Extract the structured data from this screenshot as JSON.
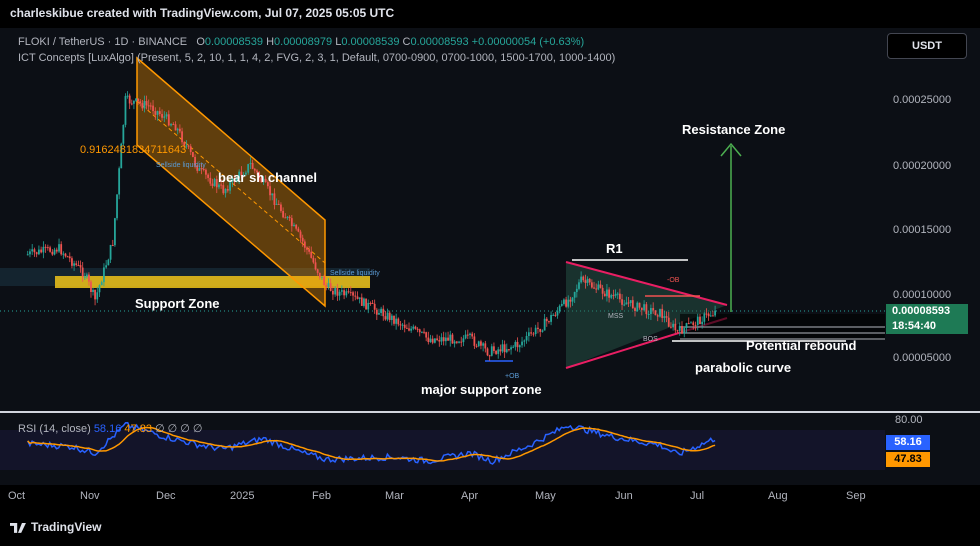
{
  "credit": "charleskibue created with TradingView.com, Jul 07, 2025 05:05 UTC",
  "legend": {
    "symbol": "FLOKI / TetherUS · 1D · BINANCE",
    "o_label": "O",
    "o": "0.00008539",
    "h_label": "H",
    "h": "0.00008979",
    "l_label": "L",
    "l": "0.00008539",
    "c_label": "C",
    "c": "0.00008593",
    "change": "+0.00000054 (+0.63%)",
    "indicator": "ICT Concepts [LuxAlgo] (Present, 5, 2, 10, 1, 1, 4, 2, FVG, 2, 3, 1, Default, 0700-0900, 0700-1000, 1500-1700, 1000-1400)"
  },
  "currency_button": "USDT",
  "price_box": {
    "price": "0.00008593",
    "countdown": "18:54:40"
  },
  "annotations": {
    "bearish_channel": "bear sh channel",
    "support_zone": "Support Zone",
    "resistance_zone": "Resistance Zone",
    "r1": "R1",
    "potential_rebound": "Potential rebound",
    "parabolic_curve": "parabolic curve",
    "major_support_zone": "major support zone",
    "fib_value": "0.9162481834711643",
    "sellside_liquidity_1": "Sellside liquidity",
    "sellside_liquidity_2": "Sellside liquidity",
    "plus_ob": "+OB",
    "minus_ob": "-OB",
    "mss": "MSS",
    "bos": "BOS"
  },
  "rsi": {
    "label": "RSI (14, close)",
    "value": "58.16",
    "ma_value": "47.83",
    "extra": "∅ ∅ ∅ ∅",
    "level_80": "80.00",
    "rsi_color": "#2962ff",
    "ma_color": "#ff9800"
  },
  "brand": "TradingView",
  "colors": {
    "up": "#26a69a",
    "down": "#ef5350",
    "channel": "#ff9800",
    "support": "#f0c419",
    "triangle": "#e91e63",
    "arrow": "#4caf50"
  },
  "chart_data": {
    "type": "candlestick",
    "y_ticks": [
      "0.00025000",
      "0.00020000",
      "0.00015000",
      "0.00010000",
      "0.00005000"
    ],
    "x_ticks": [
      "Oct",
      "Nov",
      "Dec",
      "2025",
      "Feb",
      "Mar",
      "Apr",
      "May",
      "Jun",
      "Jul",
      "Aug",
      "Sep"
    ],
    "ylim": [
      3.5e-05,
      0.00029
    ],
    "last_price": 8.593e-05,
    "close_path": [
      {
        "x": "Oct 7",
        "y": 0.00013
      },
      {
        "x": "Oct 20",
        "y": 0.000135
      },
      {
        "x": "Oct 30",
        "y": 0.000115
      },
      {
        "x": "Nov 3",
        "y": 9.5e-05
      },
      {
        "x": "Nov 10",
        "y": 0.00014
      },
      {
        "x": "Nov 15",
        "y": 0.00025
      },
      {
        "x": "Nov 25",
        "y": 0.000245
      },
      {
        "x": "Dec 5",
        "y": 0.00023
      },
      {
        "x": "Dec 15",
        "y": 0.000195
      },
      {
        "x": "Dec 25",
        "y": 0.00018
      },
      {
        "x": "Jan 5",
        "y": 0.0002
      },
      {
        "x": "Jan 15",
        "y": 0.00017
      },
      {
        "x": "Jan 25",
        "y": 0.00014
      },
      {
        "x": "Feb 3",
        "y": 0.000105
      },
      {
        "x": "Feb 15",
        "y": 9.5e-05
      },
      {
        "x": "Mar 1",
        "y": 8e-05
      },
      {
        "x": "Mar 15",
        "y": 6.5e-05
      },
      {
        "x": "Apr 1",
        "y": 6.5e-05
      },
      {
        "x": "Apr 8",
        "y": 5.5e-05
      },
      {
        "x": "Apr 20",
        "y": 6e-05
      },
      {
        "x": "Apr 30",
        "y": 7.5e-05
      },
      {
        "x": "May 10",
        "y": 9.5e-05
      },
      {
        "x": "May 15",
        "y": 0.00011
      },
      {
        "x": "May 25",
        "y": 0.0001
      },
      {
        "x": "Jun 5",
        "y": 9e-05
      },
      {
        "x": "Jun 15",
        "y": 8.5e-05
      },
      {
        "x": "Jun 22",
        "y": 7e-05
      },
      {
        "x": "Jul 1",
        "y": 8e-05
      },
      {
        "x": "Jul 7",
        "y": 8.593e-05
      }
    ],
    "rsi_path": [
      {
        "x": "Oct 7",
        "y": 52
      },
      {
        "x": "Oct 25",
        "y": 48
      },
      {
        "x": "Nov 3",
        "y": 40
      },
      {
        "x": "Nov 15",
        "y": 75
      },
      {
        "x": "Dec 1",
        "y": 60
      },
      {
        "x": "Dec 15",
        "y": 50
      },
      {
        "x": "Dec 25",
        "y": 45
      },
      {
        "x": "Jan 10",
        "y": 58
      },
      {
        "x": "Jan 25",
        "y": 40
      },
      {
        "x": "Feb 3",
        "y": 32
      },
      {
        "x": "Mar 1",
        "y": 35
      },
      {
        "x": "Mar 15",
        "y": 30
      },
      {
        "x": "Apr 1",
        "y": 40
      },
      {
        "x": "Apr 10",
        "y": 30
      },
      {
        "x": "Apr 25",
        "y": 50
      },
      {
        "x": "May 10",
        "y": 75
      },
      {
        "x": "May 25",
        "y": 62
      },
      {
        "x": "Jun 5",
        "y": 55
      },
      {
        "x": "Jun 15",
        "y": 50
      },
      {
        "x": "Jun 22",
        "y": 38
      },
      {
        "x": "Jul 7",
        "y": 58.16
      }
    ]
  }
}
